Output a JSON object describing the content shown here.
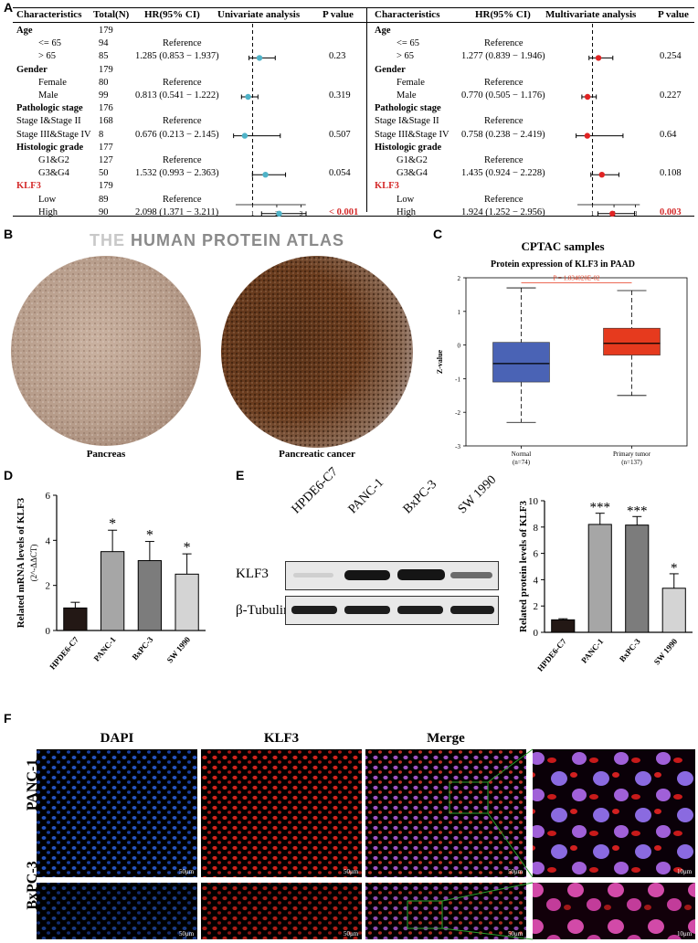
{
  "panel_labels": {
    "a": "A",
    "b": "B",
    "c": "C",
    "d": "D",
    "e": "E",
    "f": "F"
  },
  "forest": {
    "univariate": {
      "headers": {
        "characteristics": "Characteristics",
        "total": "Total(N)",
        "hr": "HR(95% CI)",
        "analysis": "Univariate analysis",
        "p": "P value"
      },
      "rows": [
        {
          "label": "Age",
          "n": "179",
          "hr": "",
          "p": "",
          "kind": "group"
        },
        {
          "label": "<= 65",
          "n": "94",
          "hr": "Reference",
          "p": "",
          "kind": "ref"
        },
        {
          "label": "> 65",
          "n": "85",
          "hr": "1.285 (0.853 − 1.937)",
          "p": "0.23",
          "kind": "est",
          "est": 1.285,
          "lo": 0.853,
          "hi": 1.937
        },
        {
          "label": "Gender",
          "n": "179",
          "hr": "",
          "p": "",
          "kind": "group"
        },
        {
          "label": "Female",
          "n": "80",
          "hr": "Reference",
          "p": "",
          "kind": "ref"
        },
        {
          "label": "Male",
          "n": "99",
          "hr": "0.813 (0.541 − 1.222)",
          "p": "0.319",
          "kind": "est",
          "est": 0.813,
          "lo": 0.541,
          "hi": 1.222
        },
        {
          "label": "Pathologic stage",
          "n": "176",
          "hr": "",
          "p": "",
          "kind": "group"
        },
        {
          "label": "Stage I&Stage II",
          "n": "168",
          "hr": "Reference",
          "p": "",
          "kind": "ref"
        },
        {
          "label": "Stage III&Stage IV",
          "n": "8",
          "hr": "0.676 (0.213 − 2.145)",
          "p": "0.507",
          "kind": "est",
          "est": 0.676,
          "lo": 0.213,
          "hi": 2.145
        },
        {
          "label": "Histologic grade",
          "n": "177",
          "hr": "",
          "p": "",
          "kind": "group"
        },
        {
          "label": "G1&G2",
          "n": "127",
          "hr": "Reference",
          "p": "",
          "kind": "ref"
        },
        {
          "label": "G3&G4",
          "n": "50",
          "hr": "1.532 (0.993 − 2.363)",
          "p": "0.054",
          "kind": "est",
          "est": 1.532,
          "lo": 0.993,
          "hi": 2.363
        },
        {
          "label": "KLF3",
          "n": "179",
          "hr": "",
          "p": "",
          "kind": "groupred"
        },
        {
          "label": "Low",
          "n": "89",
          "hr": "Reference",
          "p": "",
          "kind": "ref"
        },
        {
          "label": "High",
          "n": "90",
          "hr": "2.098 (1.371 − 3.211)",
          "p": "< 0.001",
          "kind": "est",
          "est": 2.098,
          "lo": 1.371,
          "hi": 3.211,
          "sig": true
        }
      ],
      "ticks": [
        "1",
        "2",
        "3"
      ],
      "marker_color": "#4fb3c8"
    },
    "multivariate": {
      "headers": {
        "characteristics": "Characteristics",
        "hr": "HR(95% CI)",
        "analysis": "Multivariate analysis",
        "p": "P value"
      },
      "rows": [
        {
          "label": "Age",
          "hr": "",
          "p": "",
          "kind": "group"
        },
        {
          "label": "<= 65",
          "hr": "Reference",
          "p": "",
          "kind": "ref"
        },
        {
          "label": "> 65",
          "hr": "1.277 (0.839 − 1.946)",
          "p": "0.254",
          "kind": "est",
          "est": 1.277,
          "lo": 0.839,
          "hi": 1.946
        },
        {
          "label": "Gender",
          "hr": "",
          "p": "",
          "kind": "group"
        },
        {
          "label": "Female",
          "hr": "Reference",
          "p": "",
          "kind": "ref"
        },
        {
          "label": "Male",
          "hr": "0.770 (0.505 − 1.176)",
          "p": "0.227",
          "kind": "est",
          "est": 0.77,
          "lo": 0.505,
          "hi": 1.176
        },
        {
          "label": "Pathologic stage",
          "hr": "",
          "p": "",
          "kind": "group"
        },
        {
          "label": "Stage I&Stage II",
          "hr": "Reference",
          "p": "",
          "kind": "ref"
        },
        {
          "label": "Stage III&Stage IV",
          "hr": "0.758 (0.238 − 2.419)",
          "p": "0.64",
          "kind": "est",
          "est": 0.758,
          "lo": 0.238,
          "hi": 2.419
        },
        {
          "label": "Histologic grade",
          "hr": "",
          "p": "",
          "kind": "group"
        },
        {
          "label": "G1&G2",
          "hr": "Reference",
          "p": "",
          "kind": "ref"
        },
        {
          "label": "G3&G4",
          "hr": "1.435 (0.924 − 2.228)",
          "p": "0.108",
          "kind": "est",
          "est": 1.435,
          "lo": 0.924,
          "hi": 2.228
        },
        {
          "label": "KLF3",
          "hr": "",
          "p": "",
          "kind": "groupred"
        },
        {
          "label": "Low",
          "hr": "Reference",
          "p": "",
          "kind": "ref"
        },
        {
          "label": "High",
          "hr": "1.924 (1.252 − 2.956)",
          "p": "0.003",
          "kind": "est",
          "est": 1.924,
          "lo": 1.252,
          "hi": 2.956,
          "sig": true
        }
      ],
      "ticks": [
        "1",
        "2",
        "3"
      ],
      "marker_color": "#e02424"
    }
  },
  "hpa": {
    "logo_the": "THE ",
    "logo_rest": "HUMAN PROTEIN ATLAS",
    "left_caption": "Pancreas",
    "right_caption": "Pancreatic cancer"
  },
  "chart_data": [
    {
      "id": "C",
      "type": "box",
      "title": "CPTAC samples",
      "subtitle": "Protein expression of KLF3 in PAAD",
      "ylabel": "Z-value",
      "ylim": [
        -3,
        2
      ],
      "yticks": [
        "2",
        "1",
        "0",
        "-1",
        "-2",
        "-3"
      ],
      "pvalue": "P = 1.834020E-02",
      "categories": [
        "Normal",
        "Primary tumor"
      ],
      "n_labels": [
        "(n=74)",
        "(n=137)"
      ],
      "boxes": [
        {
          "name": "Normal",
          "min": -2.3,
          "q1": -1.1,
          "median": -0.55,
          "q3": 0.08,
          "max": 1.7,
          "color": "#4a63b5"
        },
        {
          "name": "Primary tumor",
          "min": -1.5,
          "q1": -0.3,
          "median": 0.05,
          "q3": 0.5,
          "max": 1.62,
          "color": "#e63a1e"
        }
      ]
    },
    {
      "id": "D",
      "type": "bar",
      "ylabel": "Related mRNA levels of KLF3",
      "ylabel2": "(2^-ΔΔCT)",
      "ylim": [
        0,
        6
      ],
      "yticks": [
        "0",
        "2",
        "4",
        "6"
      ],
      "categories": [
        "HPDE6-C7",
        "PANC-1",
        "BxPC-3",
        "SW 1990"
      ],
      "values": [
        1.0,
        3.5,
        3.1,
        2.5
      ],
      "errors": [
        0.25,
        0.95,
        0.85,
        0.9
      ],
      "sig": [
        "",
        "*",
        "*",
        "*"
      ],
      "colors": [
        "#231815",
        "#a6a6a6",
        "#7c7c7c",
        "#d4d4d4"
      ]
    },
    {
      "id": "E",
      "type": "bar",
      "ylabel": "Related protein levels of KLF3",
      "ylim": [
        0,
        10
      ],
      "yticks": [
        "0",
        "2",
        "4",
        "6",
        "8",
        "10"
      ],
      "categories": [
        "HPDE6-C7",
        "PANC-1",
        "BxPC-3",
        "SW 1990"
      ],
      "values": [
        0.95,
        8.2,
        8.15,
        3.35
      ],
      "errors": [
        0.08,
        0.85,
        0.65,
        1.1
      ],
      "sig": [
        "",
        "***",
        "***",
        "*"
      ],
      "colors": [
        "#231815",
        "#a6a6a6",
        "#7c7c7c",
        "#d4d4d4"
      ]
    }
  ],
  "western": {
    "lanes": [
      "HPDE6-C7",
      "PANC-1",
      "BxPC-3",
      "SW 1990"
    ],
    "row1": "KLF3",
    "row2": "β-Tubulin"
  },
  "if": {
    "headers": [
      "DAPI",
      "KLF3",
      "Merge"
    ],
    "header_colors": [
      "#1f4fb3",
      "#e02424",
      "#8a3fb0"
    ],
    "rows": [
      "PANC-1",
      "BxPC-3"
    ],
    "scale_big": "50μm",
    "scale_small": "10μm"
  }
}
